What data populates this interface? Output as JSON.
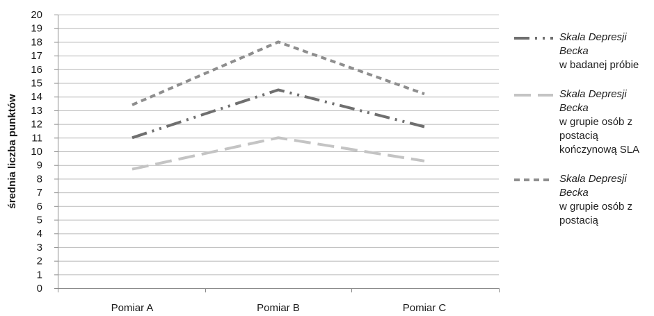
{
  "chart_data": {
    "type": "line",
    "ylabel": "średnia liczba punktów",
    "xlabel": "",
    "ylim": [
      0,
      20
    ],
    "yticks": [
      0,
      1,
      2,
      3,
      4,
      5,
      6,
      7,
      8,
      9,
      10,
      11,
      12,
      13,
      14,
      15,
      16,
      17,
      18,
      19,
      20
    ],
    "grid": true,
    "legend_position": "right",
    "categories": [
      "Pomiar A",
      "Pomiar B",
      "Pomiar C"
    ],
    "series": [
      {
        "name": "Skala Depresji Becka",
        "description": "w badanej próbie",
        "values": [
          11.0,
          14.5,
          11.8
        ],
        "color": "#6f6f6f",
        "dash": "dash-dot-dot"
      },
      {
        "name": "Skala Depresji Becka",
        "description": "w grupie osób z postacią kończynową SLA",
        "values": [
          8.7,
          11.0,
          9.3
        ],
        "color": "#c4c4c4",
        "dash": "long-dash"
      },
      {
        "name": "Skala Depresji Becka",
        "description": "w grupie osób z postacią",
        "values": [
          13.4,
          18.0,
          14.2
        ],
        "color": "#8e8e8e",
        "dash": "short-dash"
      }
    ]
  }
}
